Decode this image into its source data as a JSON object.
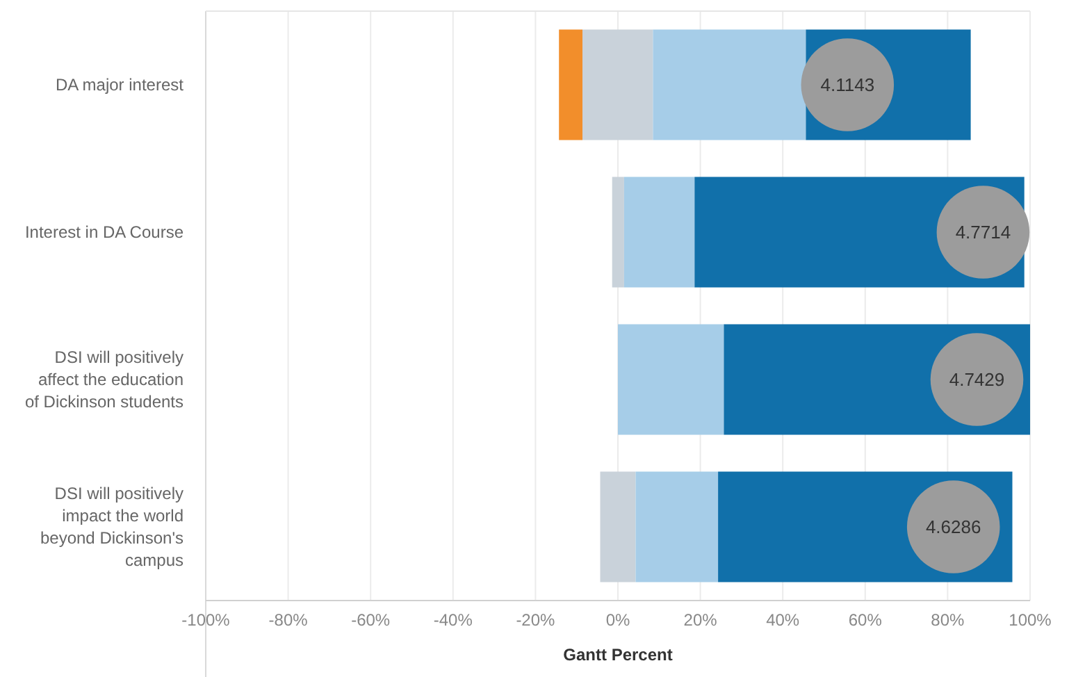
{
  "chart_data": {
    "type": "bar",
    "orientation": "horizontal",
    "categories": [
      "DA major interest",
      "Interest in DA Course",
      "DSI will positively affect the education of Dickinson students",
      "DSI will positively impact the world beyond Dickinson's campus"
    ],
    "series": [
      {
        "color": "#f28e2b",
        "values": [
          5.7,
          null,
          null,
          null
        ],
        "base": [
          -14.3,
          null,
          null,
          null
        ]
      },
      {
        "color": "#c9d2da",
        "values": [
          17.1,
          2.9,
          null,
          8.6
        ],
        "base": [
          -8.6,
          -1.4,
          null,
          -4.3
        ]
      },
      {
        "color": "#a6cde8",
        "values": [
          37.1,
          17.1,
          25.7,
          20.0
        ],
        "base": [
          8.5,
          1.5,
          0,
          4.3
        ]
      },
      {
        "color": "#1170aa",
        "values": [
          40.0,
          80.0,
          74.3,
          71.4
        ],
        "base": [
          45.6,
          18.6,
          25.7,
          24.3
        ]
      },
      {
        "type": "scatter",
        "color": "#9c9c9c",
        "marker": "circle",
        "values": [
          55.7,
          88.6,
          87.1,
          81.4
        ]
      }
    ],
    "xlim": [
      -100,
      100
    ],
    "xticks": [
      {
        "value": -100,
        "label": "-100%"
      },
      {
        "value": -80,
        "label": "-80%"
      },
      {
        "value": -60,
        "label": "-60%"
      },
      {
        "value": -40,
        "label": "-40%"
      },
      {
        "value": -20,
        "label": "-20%"
      },
      {
        "value": 0,
        "label": "0%"
      },
      {
        "value": 20,
        "label": "20%"
      },
      {
        "value": 40,
        "label": "40%"
      },
      {
        "value": 60,
        "label": "60%"
      },
      {
        "value": 80,
        "label": "80%"
      },
      {
        "value": 100,
        "label": "100%"
      }
    ],
    "annotations": [
      {
        "text": "4.1143",
        "x": 55.7,
        "y": "DA major interest"
      },
      {
        "text": "4.7714",
        "x": 88.6,
        "y": "Interest in DA Course"
      },
      {
        "text": "4.7429",
        "x": 87.1,
        "y": "DSI will positively affect the education of Dickinson students"
      },
      {
        "text": "4.6286",
        "x": 81.4,
        "y": "DSI will positively impact the world beyond Dickinson's campus"
      }
    ],
    "xlabel": "Gantt Percent",
    "grid": "x"
  }
}
